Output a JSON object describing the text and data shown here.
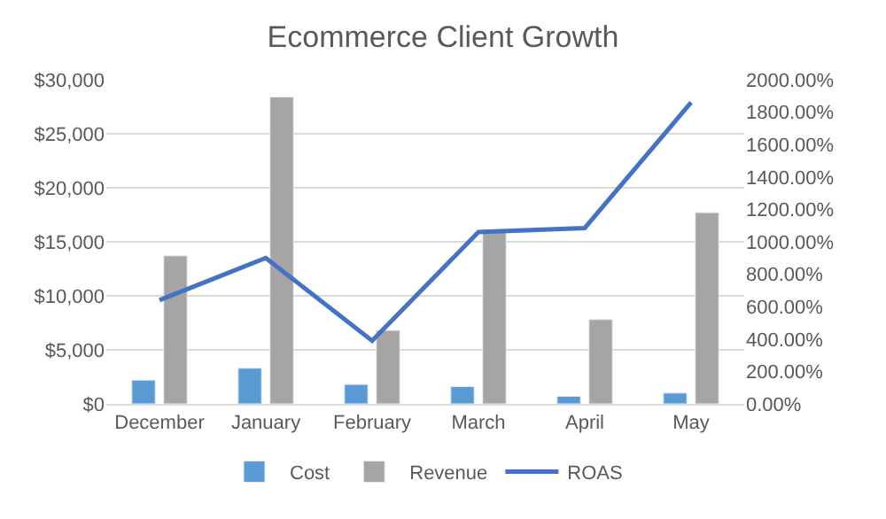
{
  "chart_data": {
    "type": "bar",
    "title": "Ecommerce Client Growth",
    "categories": [
      "December",
      "January",
      "February",
      "March",
      "April",
      "May"
    ],
    "series": [
      {
        "name": "Cost",
        "color": "#5b9bd5",
        "values": [
          2200,
          3300,
          1800,
          1600,
          700,
          1000
        ]
      },
      {
        "name": "Revenue",
        "color": "#a5a5a5",
        "values": [
          13700,
          28400,
          6800,
          15900,
          7800,
          17700
        ]
      },
      {
        "name": "ROAS",
        "type": "line",
        "axis": "y2",
        "color": "#4472c4",
        "values": [
          640,
          900,
          390,
          1060,
          1085,
          1860
        ]
      }
    ],
    "ylim": [
      0,
      30000
    ],
    "yticks": [
      {
        "value": 0,
        "label": "$0"
      },
      {
        "value": 5000,
        "label": "$5,000"
      },
      {
        "value": 10000,
        "label": "$10,000"
      },
      {
        "value": 15000,
        "label": "$15,000"
      },
      {
        "value": 20000,
        "label": "$20,000"
      },
      {
        "value": 25000,
        "label": "$25,000"
      },
      {
        "value": 30000,
        "label": "$30,000"
      }
    ],
    "y2lim": [
      0,
      2000
    ],
    "y2ticks": [
      {
        "value": 0,
        "label": "0.00%"
      },
      {
        "value": 200,
        "label": "200.00%"
      },
      {
        "value": 400,
        "label": "400.00%"
      },
      {
        "value": 600,
        "label": "600.00%"
      },
      {
        "value": 800,
        "label": "800.00%"
      },
      {
        "value": 1000,
        "label": "1000.00%"
      },
      {
        "value": 1200,
        "label": "1200.00%"
      },
      {
        "value": 1400,
        "label": "1400.00%"
      },
      {
        "value": 1600,
        "label": "1600.00%"
      },
      {
        "value": 1800,
        "label": "1800.00%"
      },
      {
        "value": 2000,
        "label": "2000.00%"
      }
    ],
    "grid": "y",
    "legend": "bottom"
  }
}
